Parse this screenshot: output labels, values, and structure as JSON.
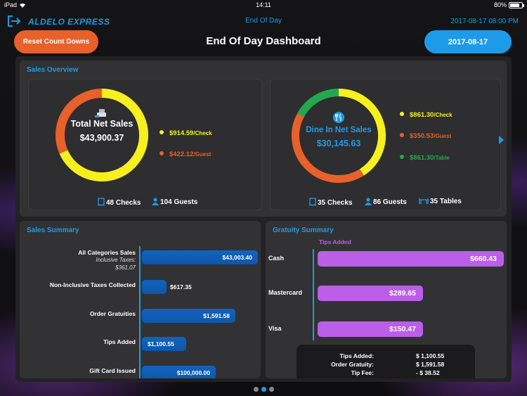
{
  "status_bar": {
    "device": "iPad",
    "time": "14:11",
    "battery": "80%",
    "battery_level": 0.8
  },
  "header": {
    "brand": "ALDELO EXPRESS",
    "title": "End Of Day",
    "datetime": "2017-08-17 08:00 PM"
  },
  "toolbar": {
    "reset_label": "Reset Count Downs",
    "dashboard_title": "End Of Day Dashboard",
    "date_label": "2017-08-17"
  },
  "sales_overview": {
    "title": "Sales Overview",
    "total": {
      "label": "Total Net Sales",
      "amount": "$43,900.37",
      "legend": [
        {
          "value": "$914.59",
          "suffix": "/Check",
          "color": "#f6f01e"
        },
        {
          "value": "$422.12",
          "suffix": "/Guest",
          "color": "#e8602a"
        }
      ],
      "ring": [
        {
          "name": "Check",
          "share": 0.684,
          "color": "#f6f01e"
        },
        {
          "name": "Guest",
          "share": 0.316,
          "color": "#e8602a"
        }
      ],
      "checks": "48 Checks",
      "guests": "104 Guests"
    },
    "dine_in": {
      "label": "Dine In Net Sales",
      "amount": "$30,145.63",
      "legend": [
        {
          "value": "$861.30",
          "suffix": "/Check",
          "color": "#f6f01e"
        },
        {
          "value": "$350.53",
          "suffix": "/Guest",
          "color": "#e8602a"
        },
        {
          "value": "$861.30",
          "suffix": "/Table",
          "color": "#22a94e"
        }
      ],
      "ring": [
        {
          "name": "Check",
          "share": 0.41,
          "color": "#f6f01e"
        },
        {
          "name": "Guest",
          "share": 0.42,
          "color": "#e8602a"
        },
        {
          "name": "Table",
          "share": 0.17,
          "color": "#22a94e"
        }
      ],
      "checks": "35 Checks",
      "guests": "86 Guests",
      "tables": "35 Tables"
    }
  },
  "sales_summary": {
    "title": "Sales Summary",
    "rows": [
      {
        "label": "All Categories Sales",
        "sub1": "Inclusive Taxes:",
        "sub2": "$361.07",
        "value": "$43,003.40",
        "amount": 43003.4
      },
      {
        "label": "Non-Inclusive Taxes Collected",
        "value": "$617.35",
        "amount": 617.35
      },
      {
        "label": "Order Gratuities",
        "value": "$1,591.58",
        "amount": 1591.58
      },
      {
        "label": "Tips Added",
        "value": "$1,100.55",
        "amount": 1100.55
      },
      {
        "label": "Gift Card Issued",
        "value": "$100,000.00",
        "amount": 100000.0
      }
    ]
  },
  "gratuity_summary": {
    "title": "Gratuity Summary",
    "legend": "Tips Added",
    "bars": [
      {
        "label": "Cash",
        "value": "$660.43",
        "amount": 660.43
      },
      {
        "label": "Mastercard",
        "value": "$289.65",
        "amount": 289.65
      },
      {
        "label": "Visa",
        "value": "$150.47",
        "amount": 150.47
      }
    ],
    "totals": [
      {
        "label": "Tips Added:",
        "value": "$ 1,100.55"
      },
      {
        "label": "Order Gratuity:",
        "value": "$ 1,591.58"
      },
      {
        "label": "Tip Fee:",
        "value": "- $ 38.52"
      }
    ]
  },
  "pagination": {
    "pages": 3,
    "current": 2
  },
  "colors": {
    "accent": "#1e9be8",
    "orange": "#e8602a",
    "purple": "#bb5ee8",
    "bar_blue": "#0d57a8"
  }
}
